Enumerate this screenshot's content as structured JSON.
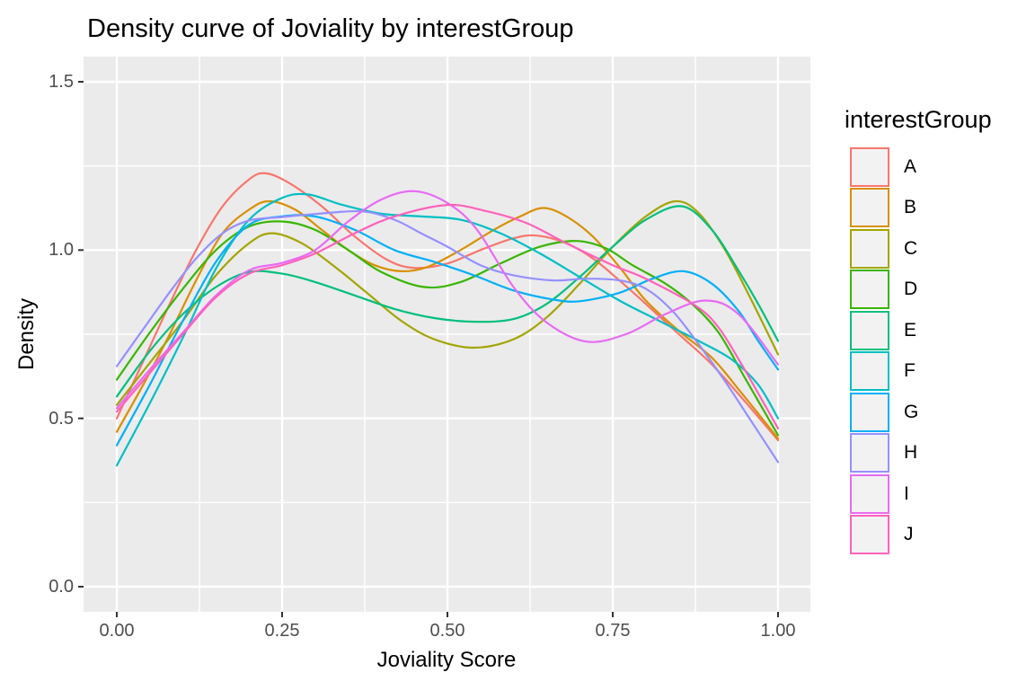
{
  "title": "Density curve of Joviality by interestGroup",
  "chart_data": {
    "type": "line",
    "subtype": "density",
    "title": "Density curve of Joviality by interestGroup",
    "xlabel": "Joviality Score",
    "ylabel": "Density",
    "x_tick_labels": [
      "0.00",
      "0.25",
      "0.50",
      "0.75",
      "1.00"
    ],
    "x_tick_values": [
      0,
      0.25,
      0.5,
      0.75,
      1
    ],
    "x_minor_values": [
      0.125,
      0.375,
      0.625,
      0.875
    ],
    "y_tick_labels": [
      "0.0",
      "0.5",
      "1.0",
      "1.5"
    ],
    "y_tick_values": [
      0,
      0.5,
      1,
      1.5
    ],
    "y_minor_values": [
      0.25,
      0.75,
      1.25
    ],
    "xlim": [
      -0.05,
      1.05
    ],
    "ylim": [
      -0.075,
      1.575
    ],
    "grid": true,
    "panel_bg": "#EBEBEB",
    "grid_color": "#FFFFFF",
    "tick_color": "#333333",
    "tick_label_color": "#4D4D4D",
    "legend_title": "interestGroup",
    "legend_position": "right",
    "legend_key_fill": "#F2F2F2",
    "series": [
      {
        "name": "A",
        "color": "#F8766D",
        "points": [
          [
            0,
            0.5
          ],
          [
            0.04,
            0.67
          ],
          [
            0.08,
            0.84
          ],
          [
            0.12,
            1.0
          ],
          [
            0.16,
            1.13
          ],
          [
            0.2,
            1.21
          ],
          [
            0.225,
            1.228
          ],
          [
            0.26,
            1.2
          ],
          [
            0.31,
            1.13
          ],
          [
            0.36,
            1.04
          ],
          [
            0.41,
            0.97
          ],
          [
            0.45,
            0.947
          ],
          [
            0.5,
            0.96
          ],
          [
            0.55,
            1.0
          ],
          [
            0.6,
            1.035
          ],
          [
            0.635,
            1.043
          ],
          [
            0.68,
            1.02
          ],
          [
            0.72,
            0.975
          ],
          [
            0.76,
            0.91
          ],
          [
            0.8,
            0.84
          ],
          [
            0.85,
            0.75
          ],
          [
            0.9,
            0.66
          ],
          [
            0.95,
            0.55
          ],
          [
            1.0,
            0.435
          ]
        ]
      },
      {
        "name": "B",
        "color": "#D89000",
        "points": [
          [
            0,
            0.46
          ],
          [
            0.04,
            0.6
          ],
          [
            0.08,
            0.75
          ],
          [
            0.12,
            0.91
          ],
          [
            0.16,
            1.05
          ],
          [
            0.2,
            1.12
          ],
          [
            0.23,
            1.145
          ],
          [
            0.27,
            1.12
          ],
          [
            0.31,
            1.06
          ],
          [
            0.35,
            1.0
          ],
          [
            0.39,
            0.955
          ],
          [
            0.43,
            0.937
          ],
          [
            0.47,
            0.95
          ],
          [
            0.52,
            1.0
          ],
          [
            0.57,
            1.06
          ],
          [
            0.61,
            1.1
          ],
          [
            0.645,
            1.125
          ],
          [
            0.68,
            1.1
          ],
          [
            0.72,
            1.04
          ],
          [
            0.76,
            0.95
          ],
          [
            0.8,
            0.85
          ],
          [
            0.85,
            0.76
          ],
          [
            0.9,
            0.68
          ],
          [
            0.945,
            0.575
          ],
          [
            1.0,
            0.44
          ]
        ]
      },
      {
        "name": "C",
        "color": "#A3A500",
        "points": [
          [
            0,
            0.54
          ],
          [
            0.05,
            0.665
          ],
          [
            0.1,
            0.79
          ],
          [
            0.15,
            0.925
          ],
          [
            0.2,
            1.02
          ],
          [
            0.235,
            1.05
          ],
          [
            0.28,
            1.02
          ],
          [
            0.33,
            0.95
          ],
          [
            0.38,
            0.87
          ],
          [
            0.43,
            0.79
          ],
          [
            0.48,
            0.735
          ],
          [
            0.54,
            0.71
          ],
          [
            0.6,
            0.735
          ],
          [
            0.65,
            0.8
          ],
          [
            0.7,
            0.9
          ],
          [
            0.75,
            1.01
          ],
          [
            0.8,
            1.1
          ],
          [
            0.845,
            1.145
          ],
          [
            0.88,
            1.11
          ],
          [
            0.92,
            1.0
          ],
          [
            0.96,
            0.85
          ],
          [
            1.0,
            0.69
          ]
        ]
      },
      {
        "name": "D",
        "color": "#39B600",
        "points": [
          [
            0,
            0.615
          ],
          [
            0.05,
            0.755
          ],
          [
            0.1,
            0.885
          ],
          [
            0.15,
            1.0
          ],
          [
            0.2,
            1.07
          ],
          [
            0.25,
            1.085
          ],
          [
            0.3,
            1.06
          ],
          [
            0.35,
            1.0
          ],
          [
            0.4,
            0.935
          ],
          [
            0.465,
            0.89
          ],
          [
            0.52,
            0.905
          ],
          [
            0.58,
            0.96
          ],
          [
            0.64,
            1.01
          ],
          [
            0.695,
            1.027
          ],
          [
            0.74,
            1.005
          ],
          [
            0.78,
            0.955
          ],
          [
            0.83,
            0.9
          ],
          [
            0.87,
            0.84
          ],
          [
            0.91,
            0.755
          ],
          [
            0.95,
            0.62
          ],
          [
            1.0,
            0.45
          ]
        ]
      },
      {
        "name": "E",
        "color": "#00BF7D",
        "points": [
          [
            0,
            0.565
          ],
          [
            0.05,
            0.7
          ],
          [
            0.1,
            0.81
          ],
          [
            0.15,
            0.89
          ],
          [
            0.2,
            0.935
          ],
          [
            0.25,
            0.93
          ],
          [
            0.3,
            0.905
          ],
          [
            0.36,
            0.865
          ],
          [
            0.42,
            0.825
          ],
          [
            0.48,
            0.798
          ],
          [
            0.54,
            0.787
          ],
          [
            0.6,
            0.795
          ],
          [
            0.65,
            0.84
          ],
          [
            0.7,
            0.92
          ],
          [
            0.75,
            1.01
          ],
          [
            0.8,
            1.09
          ],
          [
            0.855,
            1.13
          ],
          [
            0.9,
            1.06
          ],
          [
            0.94,
            0.94
          ],
          [
            0.97,
            0.84
          ],
          [
            1.0,
            0.73
          ]
        ]
      },
      {
        "name": "F",
        "color": "#00BFC4",
        "points": [
          [
            0,
            0.36
          ],
          [
            0.05,
            0.545
          ],
          [
            0.1,
            0.74
          ],
          [
            0.15,
            0.945
          ],
          [
            0.2,
            1.09
          ],
          [
            0.25,
            1.155
          ],
          [
            0.29,
            1.165
          ],
          [
            0.34,
            1.135
          ],
          [
            0.4,
            1.108
          ],
          [
            0.46,
            1.1
          ],
          [
            0.52,
            1.09
          ],
          [
            0.58,
            1.05
          ],
          [
            0.64,
            0.99
          ],
          [
            0.7,
            0.92
          ],
          [
            0.76,
            0.85
          ],
          [
            0.82,
            0.79
          ],
          [
            0.88,
            0.73
          ],
          [
            0.93,
            0.675
          ],
          [
            0.97,
            0.6
          ],
          [
            1.0,
            0.5
          ]
        ]
      },
      {
        "name": "G",
        "color": "#00B0F6",
        "points": [
          [
            0,
            0.42
          ],
          [
            0.05,
            0.6
          ],
          [
            0.1,
            0.79
          ],
          [
            0.15,
            0.965
          ],
          [
            0.2,
            1.075
          ],
          [
            0.25,
            1.1
          ],
          [
            0.3,
            1.1
          ],
          [
            0.36,
            1.06
          ],
          [
            0.42,
            1.0
          ],
          [
            0.48,
            0.965
          ],
          [
            0.54,
            0.925
          ],
          [
            0.6,
            0.88
          ],
          [
            0.66,
            0.853
          ],
          [
            0.7,
            0.848
          ],
          [
            0.76,
            0.873
          ],
          [
            0.81,
            0.915
          ],
          [
            0.857,
            0.937
          ],
          [
            0.9,
            0.9
          ],
          [
            0.94,
            0.82
          ],
          [
            0.97,
            0.73
          ],
          [
            1.0,
            0.645
          ]
        ]
      },
      {
        "name": "H",
        "color": "#9590FF",
        "points": [
          [
            0,
            0.655
          ],
          [
            0.04,
            0.765
          ],
          [
            0.08,
            0.875
          ],
          [
            0.12,
            0.975
          ],
          [
            0.16,
            1.05
          ],
          [
            0.2,
            1.088
          ],
          [
            0.25,
            1.098
          ],
          [
            0.3,
            1.107
          ],
          [
            0.37,
            1.115
          ],
          [
            0.42,
            1.09
          ],
          [
            0.46,
            1.05
          ],
          [
            0.5,
            1.01
          ],
          [
            0.55,
            0.955
          ],
          [
            0.6,
            0.925
          ],
          [
            0.66,
            0.91
          ],
          [
            0.71,
            0.915
          ],
          [
            0.76,
            0.91
          ],
          [
            0.8,
            0.885
          ],
          [
            0.84,
            0.82
          ],
          [
            0.88,
            0.72
          ],
          [
            0.92,
            0.61
          ],
          [
            0.96,
            0.49
          ],
          [
            1.0,
            0.37
          ]
        ]
      },
      {
        "name": "I",
        "color": "#E76BF3",
        "points": [
          [
            0,
            0.53
          ],
          [
            0.05,
            0.645
          ],
          [
            0.1,
            0.755
          ],
          [
            0.15,
            0.865
          ],
          [
            0.2,
            0.94
          ],
          [
            0.25,
            0.962
          ],
          [
            0.3,
            1.0
          ],
          [
            0.35,
            1.085
          ],
          [
            0.4,
            1.15
          ],
          [
            0.45,
            1.175
          ],
          [
            0.5,
            1.14
          ],
          [
            0.545,
            1.06
          ],
          [
            0.6,
            0.89
          ],
          [
            0.65,
            0.785
          ],
          [
            0.71,
            0.728
          ],
          [
            0.77,
            0.75
          ],
          [
            0.83,
            0.81
          ],
          [
            0.89,
            0.85
          ],
          [
            0.94,
            0.81
          ],
          [
            1.0,
            0.66
          ]
        ]
      },
      {
        "name": "J",
        "color": "#FF62BC",
        "points": [
          [
            0,
            0.52
          ],
          [
            0.05,
            0.635
          ],
          [
            0.1,
            0.75
          ],
          [
            0.15,
            0.86
          ],
          [
            0.2,
            0.93
          ],
          [
            0.25,
            0.955
          ],
          [
            0.3,
            0.99
          ],
          [
            0.36,
            1.05
          ],
          [
            0.42,
            1.1
          ],
          [
            0.5,
            1.134
          ],
          [
            0.56,
            1.115
          ],
          [
            0.62,
            1.08
          ],
          [
            0.68,
            1.02
          ],
          [
            0.75,
            0.955
          ],
          [
            0.8,
            0.915
          ],
          [
            0.875,
            0.835
          ],
          [
            0.91,
            0.77
          ],
          [
            0.945,
            0.66
          ],
          [
            1.0,
            0.47
          ]
        ]
      }
    ]
  }
}
